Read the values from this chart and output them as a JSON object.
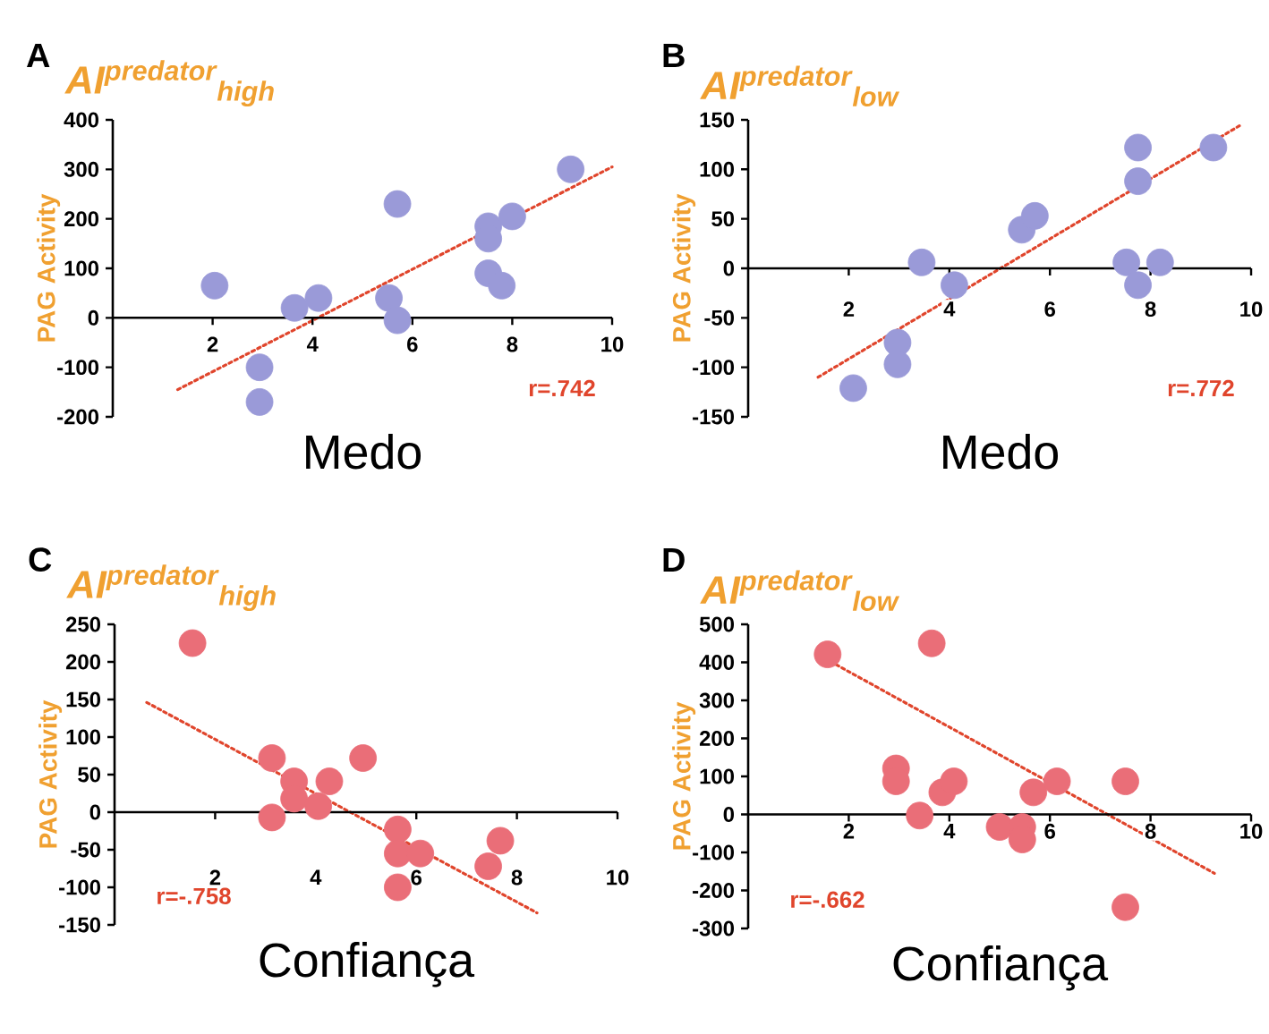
{
  "chart_data": [
    {
      "type": "scatter",
      "title": "A",
      "subtitle": "AI$^{predator}$$_{high}$",
      "xlabel": "Medo",
      "ylabel": "PAG Activity",
      "annotations": [
        "r=.742"
      ],
      "xlim": [
        0,
        10
      ],
      "xticks": [
        2,
        4,
        6,
        8,
        10
      ],
      "ylim": [
        -200,
        400
      ],
      "yticks": [
        -200,
        -100,
        0,
        100,
        200,
        300,
        400
      ],
      "series": [
        {
          "color": "#9a9ad8",
          "marker": "circle",
          "x": [
            2.04,
            2.94,
            2.94,
            3.64,
            4.12,
            5.53,
            5.7,
            5.7,
            7.52,
            7.52,
            7.52,
            7.79,
            8.0,
            9.17
          ],
          "values": [
            65,
            -100,
            -170,
            20,
            40,
            40,
            230,
            -5,
            185,
            160,
            90,
            65,
            205,
            300
          ]
        },
        {
          "type": "line",
          "marker": "none",
          "line_style": "dotted",
          "color": "#e0452c",
          "x": [
            1.3,
            10
          ],
          "values": [
            -145,
            305
          ]
        }
      ]
    },
    {
      "type": "scatter",
      "title": "B",
      "subtitle": "AI$^{predator}$$_{low}$",
      "xlabel": "Medo",
      "ylabel": "PAG Activity",
      "annotations": [
        "r=.772"
      ],
      "xlim": [
        0,
        10
      ],
      "xticks": [
        2,
        4,
        6,
        8,
        10
      ],
      "ylim": [
        -150,
        150
      ],
      "yticks": [
        -150,
        -100,
        -50,
        0,
        50,
        100,
        150
      ],
      "series": [
        {
          "color": "#9a9ad8",
          "marker": "circle",
          "x": [
            3.45,
            4.1,
            5.44,
            5.7,
            7.52,
            7.75,
            7.75,
            7.75,
            8.19,
            9.25,
            2.97,
            2.97,
            2.09
          ],
          "values": [
            6,
            -17,
            39,
            53,
            6,
            122,
            88,
            -17,
            6,
            122,
            -75,
            -97,
            -121
          ]
        },
        {
          "type": "line",
          "marker": "none",
          "line_style": "dotted",
          "color": "#e0452c",
          "x": [
            1.39,
            9.8
          ],
          "values": [
            -110,
            145
          ]
        }
      ]
    },
    {
      "type": "scatter",
      "title": "C",
      "subtitle": "AI$^{predator}$$_{high}$",
      "xlabel": "Confiança",
      "ylabel": "PAG Activity",
      "annotations": [
        "r=-.758"
      ],
      "xlim": [
        0,
        10
      ],
      "xticks": [
        2,
        4,
        6,
        8,
        10
      ],
      "ylim": [
        -150,
        250
      ],
      "yticks": [
        -150,
        -100,
        -50,
        0,
        50,
        100,
        150,
        200,
        250
      ],
      "series": [
        {
          "color": "#ea6e78",
          "marker": "circle",
          "x": [
            1.55,
            3.13,
            3.13,
            3.57,
            3.57,
            4.05,
            4.27,
            4.94,
            5.63,
            5.63,
            5.63,
            6.08,
            7.43,
            7.67
          ],
          "values": [
            225,
            72,
            -7,
            41,
            18,
            8,
            41,
            72,
            -23,
            -55,
            -100,
            -55,
            -72,
            -38
          ]
        },
        {
          "type": "line",
          "marker": "none",
          "line_style": "dotted",
          "color": "#e0452c",
          "x": [
            0.64,
            8.4
          ],
          "values": [
            146,
            -134
          ]
        }
      ]
    },
    {
      "type": "scatter",
      "title": "D",
      "subtitle": "AI$^{predator}$$_{low}$",
      "xlabel": "Confiança",
      "ylabel": "PAG Activity",
      "annotations": [
        "r=-.662"
      ],
      "xlim": [
        0,
        10
      ],
      "xticks": [
        2,
        4,
        6,
        8,
        10
      ],
      "ylim": [
        -300,
        500
      ],
      "yticks": [
        -300,
        -200,
        -100,
        0,
        100,
        200,
        300,
        400,
        500
      ],
      "series": [
        {
          "color": "#ea6e78",
          "marker": "circle",
          "x": [
            1.58,
            3.65,
            2.94,
            2.94,
            3.41,
            3.86,
            4.09,
            5.0,
            5.45,
            5.45,
            5.67,
            6.14,
            7.5,
            7.5
          ],
          "values": [
            421,
            450,
            121,
            87,
            -3,
            58,
            87,
            -33,
            -33,
            -66,
            58,
            87,
            87,
            -244
          ]
        },
        {
          "type": "line",
          "marker": "none",
          "line_style": "dotted",
          "color": "#e0452c",
          "x": [
            1.64,
            9.27
          ],
          "values": [
            402,
            -155
          ]
        }
      ]
    }
  ]
}
